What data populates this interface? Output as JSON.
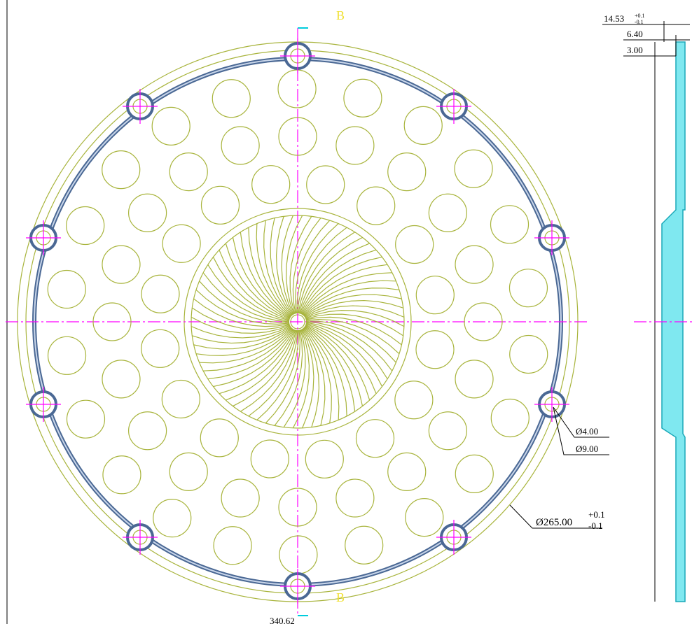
{
  "section_marks": {
    "top": "B",
    "bottom": "B"
  },
  "dimensions": {
    "thickness": {
      "text": "14.53",
      "upper": "+0.1",
      "lower": "-0.1"
    },
    "step": "6.40",
    "wall": "3.00",
    "hole_small": "Ø4.00",
    "hole_large": "Ø9.00",
    "outer_diameter": {
      "text": "Ø265.00",
      "upper": "+0.1",
      "lower": "-0.1"
    },
    "bottom": "340.62"
  }
}
